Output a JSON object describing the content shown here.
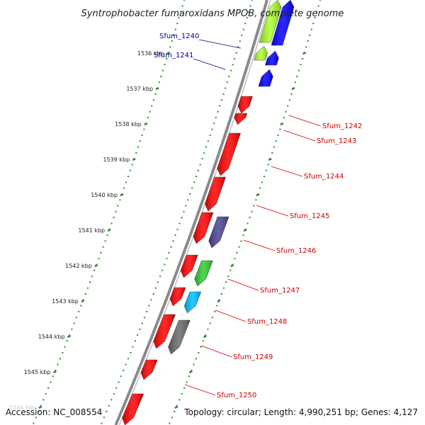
{
  "title": "Syntrophobacter fumaroxidans MPOB, complete genome",
  "footer": {
    "accession": "Accession: NC_008554",
    "summary": "Topology: circular; Length: 4,990,251 bp; Genes: 4,127"
  },
  "colors": {
    "backbone": "#8a8a8a",
    "tick": "#2e8b2e",
    "label_forward": "#00008b",
    "label_reverse": "#cc0000"
  },
  "ticks": [
    "1536 kbp",
    "1537 kbp",
    "1538 kbp",
    "1539 kbp",
    "1540 kbp",
    "1541 kbp",
    "1542 kbp",
    "1543 kbp",
    "1544 kbp",
    "1545 kbp",
    "1546 kbp"
  ],
  "genes": [
    {
      "label": "",
      "color": "#adff2f",
      "strand": 1,
      "track": "forward-outer"
    },
    {
      "label": "",
      "color": "#0000ff",
      "strand": 1,
      "track": "forward-inner"
    },
    {
      "label": "Sfum_1240",
      "color": "#adff2f",
      "strand": 1,
      "track": "forward-outer"
    },
    {
      "label": "",
      "color": "#0000ff",
      "strand": 1,
      "track": "forward-inner"
    },
    {
      "label": "Sfum_1241",
      "color": "#0000ff",
      "strand": 1,
      "track": "forward-inner"
    },
    {
      "label": "Sfum_1242",
      "color": "#ff0000",
      "strand": -1,
      "track": "reverse-inner"
    },
    {
      "label": "Sfum_1243",
      "color": "#ff0000",
      "strand": -1,
      "track": "reverse-inner"
    },
    {
      "label": "Sfum_1244",
      "color": "#ff0000",
      "strand": -1,
      "track": "reverse-inner"
    },
    {
      "label": "Sfum_1245",
      "color": "#ff0000",
      "strand": -1,
      "track": "reverse-inner"
    },
    {
      "label": "Sfum_1246",
      "color": "#ff0000",
      "strand": -1,
      "track": "reverse-inner"
    },
    {
      "label": "",
      "color": "#4b4394",
      "strand": -1,
      "track": "reverse-outer"
    },
    {
      "label": "Sfum_1247",
      "color": "#ff0000",
      "strand": -1,
      "track": "reverse-inner"
    },
    {
      "label": "",
      "color": "#32cd32",
      "strand": -1,
      "track": "reverse-outer"
    },
    {
      "label": "Sfum_1248",
      "color": "#ff0000",
      "strand": -1,
      "track": "reverse-inner"
    },
    {
      "label": "",
      "color": "#00bfff",
      "strand": -1,
      "track": "reverse-outer"
    },
    {
      "label": "Sfum_1249",
      "color": "#ff0000",
      "strand": -1,
      "track": "reverse-inner"
    },
    {
      "label": "",
      "color": "#696969",
      "strand": -1,
      "track": "reverse-outer"
    },
    {
      "label": "Sfum_1250",
      "color": "#ff0000",
      "strand": -1,
      "track": "reverse-inner"
    },
    {
      "label": "",
      "color": "#ff0000",
      "strand": -1,
      "track": "reverse-inner"
    }
  ]
}
